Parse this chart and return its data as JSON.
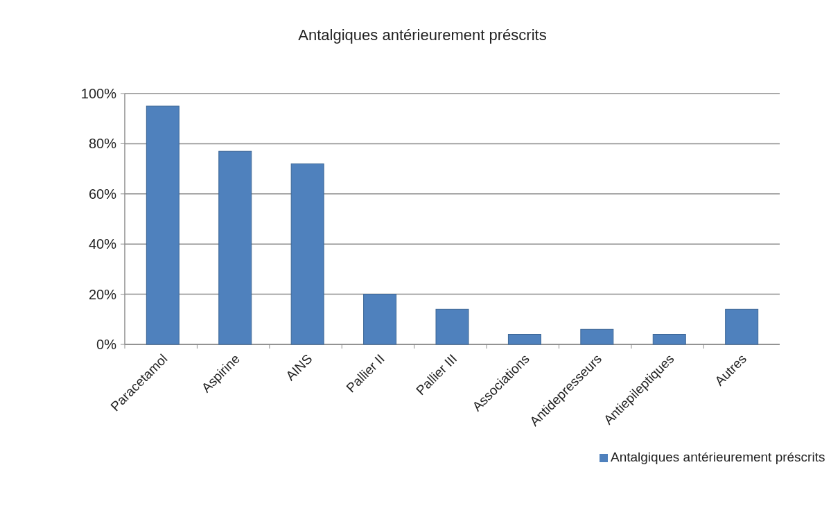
{
  "chart_data": {
    "type": "bar",
    "title": "Antalgiques antérieurement préscrits",
    "categories": [
      "Paracetamol",
      "Aspirine",
      "AINS",
      "Pallier II",
      "Pallier III",
      "Associations",
      "Antidepresseurs",
      "Antiepileptiques",
      "Autres"
    ],
    "series": [
      {
        "name": "Antalgiques antérieurement préscrits",
        "color": "#4f81bd",
        "values": [
          95,
          77,
          72,
          20,
          14,
          4,
          6,
          4,
          14
        ]
      }
    ],
    "ylim": [
      0,
      100
    ],
    "yticks": [
      {
        "value": 0,
        "label": "0%"
      },
      {
        "value": 20,
        "label": "20%"
      },
      {
        "value": 40,
        "label": "40%"
      },
      {
        "value": 60,
        "label": "60%"
      },
      {
        "value": 80,
        "label": "80%"
      },
      {
        "value": 100,
        "label": "100%"
      }
    ],
    "grid": "y",
    "legend": "bottom right"
  }
}
